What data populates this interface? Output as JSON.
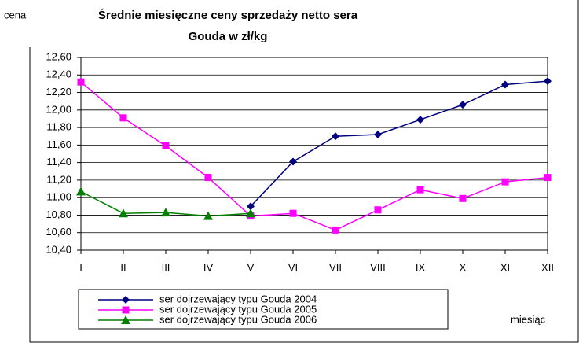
{
  "chart_data": {
    "type": "line",
    "title": "Średnie miesięczne ceny sprzedaży netto sera",
    "subtitle": "Gouda w zł/kg",
    "y_label": "cena",
    "x_label": "miesiąc",
    "categories": [
      "I",
      "II",
      "III",
      "IV",
      "V",
      "VI",
      "VII",
      "VIII",
      "IX",
      "X",
      "XI",
      "XII"
    ],
    "series": [
      {
        "name": "ser dojrzewający typu Gouda 2004",
        "color": "#000080",
        "marker": "diamond",
        "values": [
          null,
          null,
          null,
          null,
          10.9,
          11.41,
          11.7,
          11.72,
          11.89,
          12.06,
          12.29,
          12.33
        ]
      },
      {
        "name": "ser dojrzewający typu Gouda 2005",
        "color": "#ff00ff",
        "marker": "square",
        "values": [
          12.32,
          11.91,
          11.59,
          11.23,
          10.79,
          10.82,
          10.63,
          10.86,
          11.09,
          10.99,
          11.18,
          11.23
        ]
      },
      {
        "name": "ser dojrzewający typu Gouda 2006",
        "color": "#008000",
        "marker": "triangle",
        "values": [
          11.07,
          10.82,
          10.83,
          10.79,
          10.82,
          null,
          null,
          null,
          null,
          null,
          null,
          null
        ]
      }
    ],
    "ylim": [
      10.4,
      12.6
    ],
    "yticks": [
      {
        "value": 10.4,
        "label": "10,40"
      },
      {
        "value": 10.6,
        "label": "10,60"
      },
      {
        "value": 10.8,
        "label": "10,80"
      },
      {
        "value": 11.0,
        "label": "11,00"
      },
      {
        "value": 11.2,
        "label": "11,20"
      },
      {
        "value": 11.4,
        "label": "11,40"
      },
      {
        "value": 11.6,
        "label": "11,60"
      },
      {
        "value": 11.8,
        "label": "11,80"
      },
      {
        "value": 12.0,
        "label": "12,00"
      },
      {
        "value": 12.2,
        "label": "12,20"
      },
      {
        "value": 12.4,
        "label": "12,40"
      },
      {
        "value": 12.6,
        "label": "12,60"
      }
    ],
    "grid": true
  }
}
